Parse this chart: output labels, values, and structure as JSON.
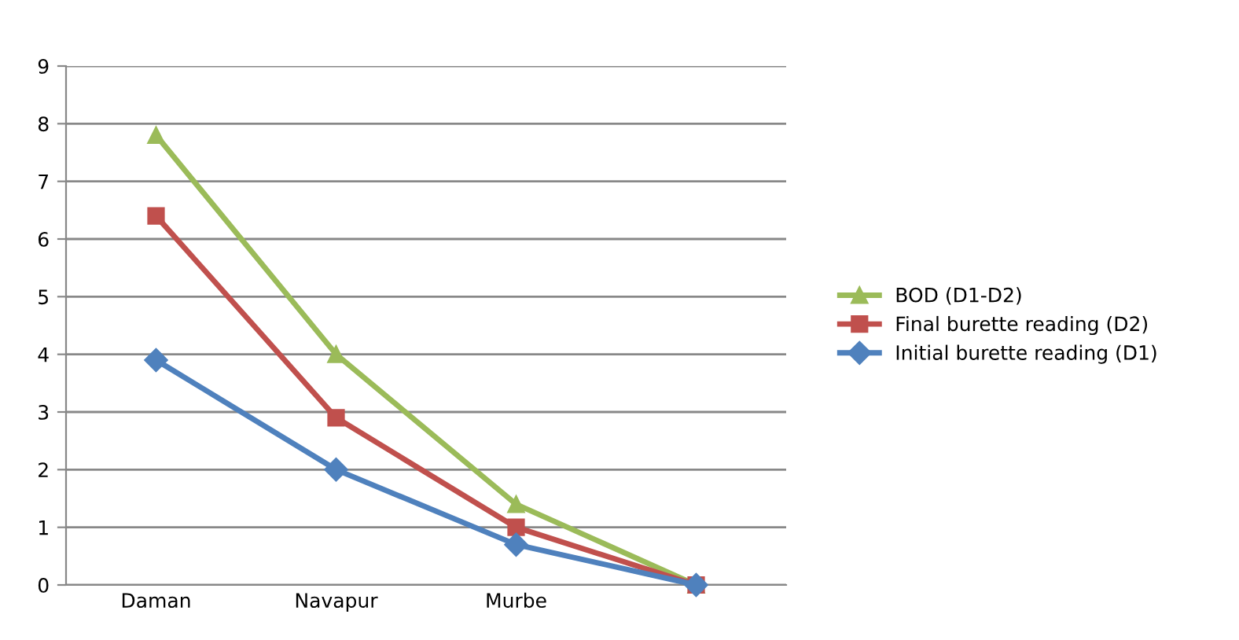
{
  "chart_data": {
    "type": "line",
    "categories": [
      "Daman",
      "Navapur",
      "Murbe",
      null
    ],
    "series": [
      {
        "name": "BOD (D1-D2)",
        "color": "#9bbb59",
        "marker": "triangle",
        "values": [
          7.8,
          4.0,
          1.4,
          0
        ]
      },
      {
        "name": "Final burette reading (D2)",
        "color": "#c0504d",
        "marker": "square",
        "values": [
          6.4,
          2.9,
          1.0,
          0
        ]
      },
      {
        "name": "Initial burette reading (D1)",
        "color": "#4f81bd",
        "marker": "diamond",
        "values": [
          3.9,
          2.0,
          0.7,
          0
        ]
      }
    ],
    "ylim": [
      0,
      9
    ],
    "yticks": [
      0,
      1,
      2,
      3,
      4,
      5,
      6,
      7,
      8,
      9
    ],
    "grid": "y",
    "legend": "right"
  }
}
